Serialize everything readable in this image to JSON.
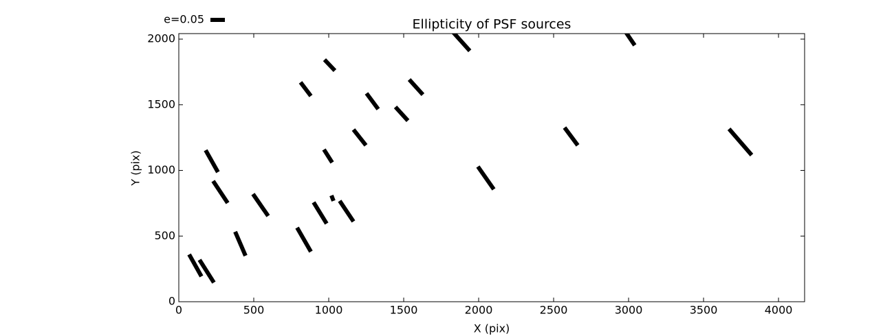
{
  "chart_data": {
    "type": "segment",
    "title": "Ellipticity of PSF sources",
    "xlabel": "X (pix)",
    "ylabel": "Y (pix)",
    "key": {
      "label": "e=0.05",
      "value": 0.05
    },
    "color": "#000000",
    "xlim": [
      0,
      4174
    ],
    "ylim": [
      0,
      2042
    ],
    "xticks": [
      0,
      500,
      1000,
      1500,
      2000,
      2500,
      3000,
      3500,
      4000
    ],
    "yticks": [
      0,
      500,
      1000,
      1500,
      2000
    ],
    "segments": [
      {
        "x": [
          1826,
          1941
        ],
        "y": [
          2057,
          1911
        ]
      },
      {
        "x": [
          2982,
          3041
        ],
        "y": [
          2052,
          1953
        ]
      },
      {
        "x": [
          972,
          1041
        ],
        "y": [
          1843,
          1760
        ]
      },
      {
        "x": [
          812,
          881
        ],
        "y": [
          1671,
          1567
        ]
      },
      {
        "x": [
          1252,
          1330
        ],
        "y": [
          1587,
          1467
        ]
      },
      {
        "x": [
          1537,
          1628
        ],
        "y": [
          1692,
          1577
        ]
      },
      {
        "x": [
          1445,
          1528
        ],
        "y": [
          1483,
          1379
        ]
      },
      {
        "x": [
          1165,
          1248
        ],
        "y": [
          1311,
          1191
        ]
      },
      {
        "x": [
          968,
          1023
        ],
        "y": [
          1159,
          1060
        ]
      },
      {
        "x": [
          179,
          261
        ],
        "y": [
          1154,
          987
        ]
      },
      {
        "x": [
          1995,
          2101
        ],
        "y": [
          1029,
          856
        ]
      },
      {
        "x": [
          2573,
          2661
        ],
        "y": [
          1326,
          1191
        ]
      },
      {
        "x": [
          3670,
          3821
        ],
        "y": [
          1316,
          1117
        ]
      },
      {
        "x": [
          229,
          326
        ],
        "y": [
          919,
          752
        ]
      },
      {
        "x": [
          495,
          596
        ],
        "y": [
          820,
          653
        ]
      },
      {
        "x": [
          1018,
          1032
        ],
        "y": [
          809,
          768
        ]
      },
      {
        "x": [
          1073,
          1165
        ],
        "y": [
          768,
          611
        ]
      },
      {
        "x": [
          899,
          986
        ],
        "y": [
          757,
          595
        ]
      },
      {
        "x": [
          376,
          445
        ],
        "y": [
          533,
          350
        ]
      },
      {
        "x": [
          789,
          881
        ],
        "y": [
          564,
          381
        ]
      },
      {
        "x": [
          69,
          151
        ],
        "y": [
          360,
          193
        ]
      },
      {
        "x": [
          138,
          234
        ],
        "y": [
          319,
          146
        ]
      }
    ]
  }
}
